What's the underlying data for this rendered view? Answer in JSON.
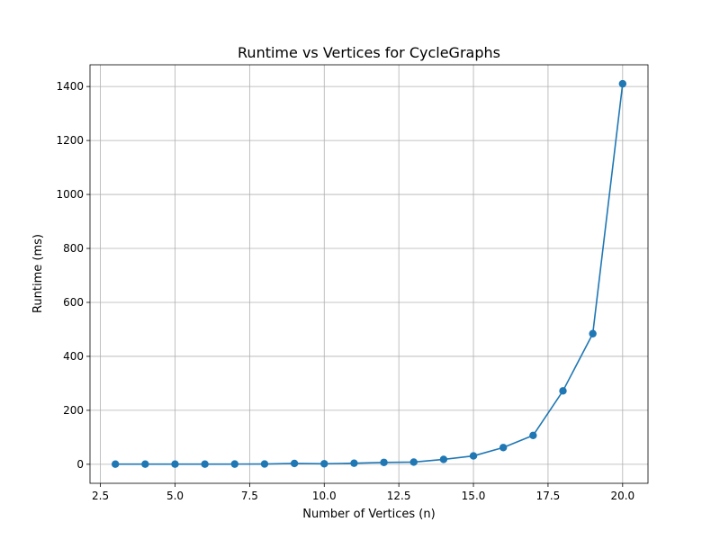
{
  "chart_data": {
    "type": "line",
    "title": "Runtime vs Vertices for CycleGraphs",
    "xlabel": "Number of Vertices (n)",
    "ylabel": "Runtime (ms)",
    "xlim": [
      2.15,
      20.85
    ],
    "ylim": [
      -70.5,
      1480.5
    ],
    "x_ticks": [
      2.5,
      5.0,
      7.5,
      10.0,
      12.5,
      15.0,
      17.5,
      20.0
    ],
    "x_tick_labels": [
      "2.5",
      "5.0",
      "7.5",
      "10.0",
      "12.5",
      "15.0",
      "17.5",
      "20.0"
    ],
    "y_ticks": [
      0,
      200,
      400,
      600,
      800,
      1000,
      1200,
      1400
    ],
    "y_tick_labels": [
      "0",
      "200",
      "400",
      "600",
      "800",
      "1000",
      "1200",
      "1400"
    ],
    "grid": true,
    "marker": "circle",
    "color": "#1f77b4",
    "series": [
      {
        "x": [
          3,
          4,
          5,
          6,
          7,
          8,
          9,
          10,
          11,
          12,
          13,
          14,
          15,
          16,
          17,
          18,
          19,
          20
        ],
        "values": [
          0.5,
          0.5,
          0.5,
          0.5,
          0.8,
          1,
          3,
          2,
          4,
          7,
          8,
          18,
          31,
          62,
          107,
          272,
          484,
          1410
        ]
      }
    ]
  }
}
